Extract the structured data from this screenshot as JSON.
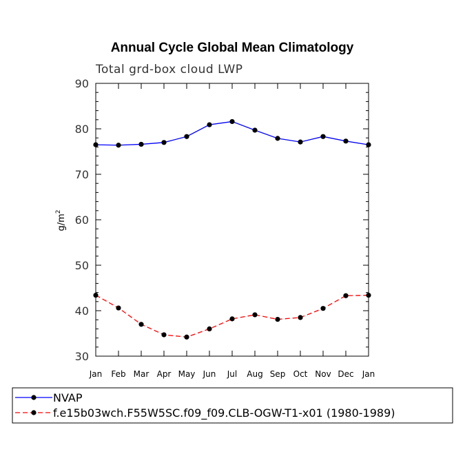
{
  "chart_data": {
    "type": "line",
    "title": "Annual Cycle Global Mean Climatology",
    "subtitle": "Total grd-box cloud LWP",
    "xlabel": "",
    "ylabel": "g/m",
    "ylabel_superscript": "2",
    "ylim": [
      30,
      90
    ],
    "yticks": [
      30,
      40,
      50,
      60,
      70,
      80,
      90
    ],
    "categories": [
      "Jan",
      "Feb",
      "Mar",
      "Apr",
      "May",
      "Jun",
      "Jul",
      "Aug",
      "Sep",
      "Oct",
      "Nov",
      "Dec",
      "Jan"
    ],
    "series": [
      {
        "name": "NVAP",
        "color": "#0000ff",
        "dash": "solid",
        "marker": "circle",
        "values": [
          76.5,
          76.4,
          76.6,
          77.0,
          78.3,
          80.9,
          81.6,
          79.7,
          77.9,
          77.1,
          78.3,
          77.3,
          76.5
        ]
      },
      {
        "name": "f.e15b03wch.F55W5SC.f09_f09.CLB-OGW-T1-x01 (1980-1989)",
        "color": "#ff0000",
        "dash": "dashed",
        "marker": "circle",
        "values": [
          43.4,
          40.6,
          37.0,
          34.7,
          34.2,
          36.0,
          38.2,
          39.1,
          38.1,
          38.5,
          40.5,
          43.3,
          43.4
        ]
      }
    ],
    "grid": false,
    "legend_position": "bottom-left"
  }
}
